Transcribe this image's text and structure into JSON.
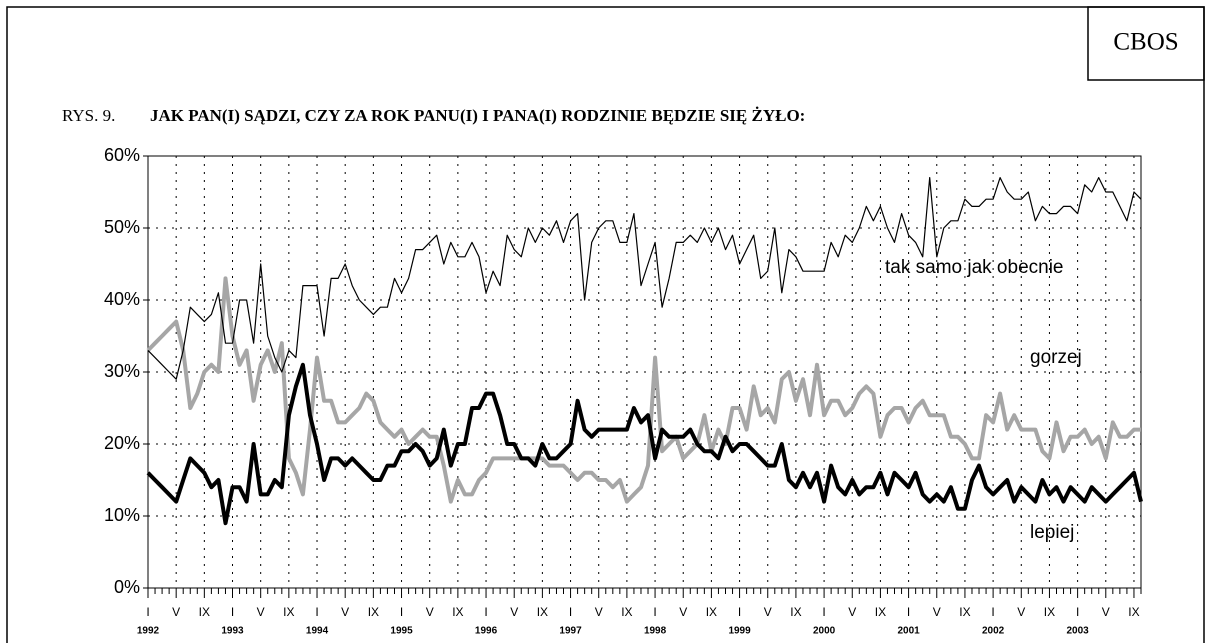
{
  "chart_data": {
    "type": "line",
    "source": "CBOS",
    "figure_label": "RYS. 9.",
    "title": "JAK PAN(I) SĄDZI, CZY ZA ROK PANU(I) I PANA(I) RODZINIE BĘDZIE SIĘ ŻYŁO:",
    "categories": [
      "I",
      null,
      null,
      null,
      "V",
      null,
      null,
      null,
      "IX",
      null,
      null,
      null,
      "I",
      null,
      null,
      null,
      "V",
      null,
      null,
      null,
      "IX",
      null,
      null,
      null,
      "I",
      null,
      null,
      null,
      "V",
      null,
      null,
      null,
      "IX",
      null,
      null,
      null,
      "I",
      null,
      null,
      null,
      "V",
      null,
      null,
      null,
      "IX",
      null,
      null,
      null,
      "I",
      null,
      null,
      null,
      "V",
      null,
      null,
      null,
      "IX",
      null,
      null,
      null,
      "I",
      null,
      null,
      null,
      "V",
      null,
      null,
      null,
      "IX",
      null,
      null,
      null,
      "I",
      null,
      null,
      null,
      "V",
      null,
      null,
      null,
      "IX",
      null,
      null,
      null,
      "I",
      null,
      null,
      null,
      "V",
      null,
      null,
      null,
      "IX",
      null,
      null,
      null,
      "I",
      null,
      null,
      null,
      "V",
      null,
      null,
      null,
      "IX",
      null,
      null,
      null,
      "I",
      null,
      null,
      null,
      "V",
      null,
      null,
      null,
      "IX",
      null,
      null,
      null,
      "I",
      null,
      null,
      null,
      "V",
      null,
      null,
      null,
      "IX",
      null,
      null,
      null,
      "I",
      null,
      null,
      null,
      "V",
      null,
      null,
      null,
      "IX",
      null
    ],
    "years": [
      "1992",
      null,
      null,
      null,
      null,
      null,
      null,
      null,
      null,
      null,
      null,
      null,
      "1993",
      null,
      null,
      null,
      null,
      null,
      null,
      null,
      null,
      null,
      null,
      null,
      "1994",
      null,
      null,
      null,
      null,
      null,
      null,
      null,
      null,
      null,
      null,
      null,
      "1995",
      null,
      null,
      null,
      null,
      null,
      null,
      null,
      null,
      null,
      null,
      null,
      "1996",
      null,
      null,
      null,
      null,
      null,
      null,
      null,
      null,
      null,
      null,
      null,
      "1997",
      null,
      null,
      null,
      null,
      null,
      null,
      null,
      null,
      null,
      null,
      null,
      "1998",
      null,
      null,
      null,
      null,
      null,
      null,
      null,
      null,
      null,
      null,
      null,
      "1999",
      null,
      null,
      null,
      null,
      null,
      null,
      null,
      null,
      null,
      null,
      null,
      "2000",
      null,
      null,
      null,
      null,
      null,
      null,
      null,
      null,
      null,
      null,
      null,
      "2001",
      null,
      null,
      null,
      null,
      null,
      null,
      null,
      null,
      null,
      null,
      null,
      "2002",
      null,
      null,
      null,
      null,
      null,
      null,
      null,
      null,
      null,
      null,
      null,
      "2003",
      null,
      null,
      null,
      null,
      null,
      null,
      null,
      null,
      null
    ],
    "series": [
      {
        "name": "tak samo jak obecnie",
        "color": "#000000",
        "values": [
          33,
          32,
          31,
          30,
          29,
          33,
          39,
          38,
          37,
          38,
          41,
          34,
          34,
          40,
          40,
          34,
          45,
          35,
          32,
          30,
          33,
          32,
          42,
          42,
          42,
          35,
          43,
          43,
          45,
          42,
          40,
          39,
          38,
          39,
          39,
          43,
          41,
          43,
          47,
          47,
          48,
          49,
          45,
          48,
          46,
          46,
          48,
          46,
          41,
          44,
          42,
          49,
          47,
          46,
          50,
          48,
          50,
          49,
          51,
          48,
          51,
          52,
          40,
          48,
          50,
          51,
          51,
          48,
          48,
          52,
          42,
          45,
          48,
          39,
          43,
          48,
          48,
          49,
          48,
          50,
          48,
          50,
          47,
          49,
          45,
          47,
          49,
          43,
          44,
          50,
          41,
          47,
          46,
          44,
          44,
          44,
          44,
          48,
          46,
          49,
          48,
          50,
          53,
          51,
          53,
          50,
          48,
          52,
          49,
          48,
          46,
          57,
          46,
          50,
          51,
          51,
          54,
          53,
          53,
          54,
          54,
          57,
          55,
          54,
          54,
          55,
          51,
          53,
          52,
          52,
          53,
          53,
          52,
          56,
          55,
          57,
          55,
          55,
          53,
          51,
          55,
          54
        ]
      },
      {
        "name": "gorzej",
        "color": "#a6a6a6",
        "values": [
          33,
          34,
          35,
          36,
          37,
          33,
          25,
          27,
          30,
          31,
          30,
          43,
          35,
          31,
          33,
          26,
          31,
          33,
          30,
          34,
          18,
          16,
          13,
          22,
          32,
          26,
          26,
          23,
          23,
          24,
          25,
          27,
          26,
          23,
          22,
          21,
          22,
          20,
          21,
          22,
          21,
          21,
          17,
          12,
          15,
          13,
          13,
          15,
          16,
          18,
          18,
          18,
          18,
          18,
          18,
          18,
          18,
          17,
          17,
          17,
          16,
          15,
          16,
          16,
          15,
          15,
          14,
          15,
          12,
          13,
          14,
          17,
          32,
          19,
          20,
          21,
          18,
          19,
          20,
          24,
          19,
          22,
          20,
          25,
          25,
          22,
          28,
          24,
          25,
          23,
          29,
          30,
          26,
          29,
          24,
          31,
          24,
          26,
          26,
          24,
          25,
          27,
          28,
          27,
          21,
          24,
          25,
          25,
          23,
          25,
          26,
          24,
          24,
          24,
          21,
          21,
          20,
          18,
          18,
          24,
          23,
          27,
          22,
          24,
          22,
          22,
          22,
          19,
          18,
          23,
          19,
          21,
          21,
          22,
          20,
          21,
          18,
          23,
          21,
          21,
          22,
          22
        ]
      },
      {
        "name": "lepiej",
        "color": "#000000",
        "values": [
          16,
          15,
          14,
          13,
          12,
          15,
          18,
          17,
          16,
          14,
          15,
          9,
          14,
          14,
          12,
          20,
          13,
          13,
          15,
          14,
          24,
          28,
          31,
          24,
          20,
          15,
          18,
          18,
          17,
          18,
          17,
          16,
          15,
          15,
          17,
          17,
          19,
          19,
          20,
          19,
          17,
          18,
          22,
          17,
          20,
          20,
          25,
          25,
          27,
          27,
          24,
          20,
          20,
          18,
          18,
          17,
          20,
          18,
          18,
          19,
          20,
          26,
          22,
          21,
          22,
          22,
          22,
          22,
          22,
          25,
          23,
          24,
          18,
          22,
          21,
          21,
          21,
          22,
          20,
          19,
          19,
          18,
          21,
          19,
          20,
          20,
          19,
          18,
          17,
          17,
          20,
          15,
          14,
          16,
          14,
          16,
          12,
          17,
          14,
          13,
          15,
          13,
          14,
          14,
          16,
          13,
          16,
          15,
          14,
          16,
          13,
          12,
          13,
          12,
          14,
          11,
          11,
          15,
          17,
          14,
          13,
          14,
          15,
          12,
          14,
          13,
          12,
          15,
          13,
          14,
          12,
          14,
          13,
          12,
          14,
          13,
          12,
          13,
          14,
          15,
          16,
          12
        ]
      }
    ],
    "ylim": [
      0,
      60
    ],
    "yticks": [
      {
        "value": 0,
        "label": "0%"
      },
      {
        "value": 10,
        "label": "10%"
      },
      {
        "value": 20,
        "label": "20%"
      },
      {
        "value": 30,
        "label": "30%"
      },
      {
        "value": 40,
        "label": "40%"
      },
      {
        "value": 50,
        "label": "50%"
      },
      {
        "value": 60,
        "label": "60%"
      }
    ],
    "grid": true
  }
}
